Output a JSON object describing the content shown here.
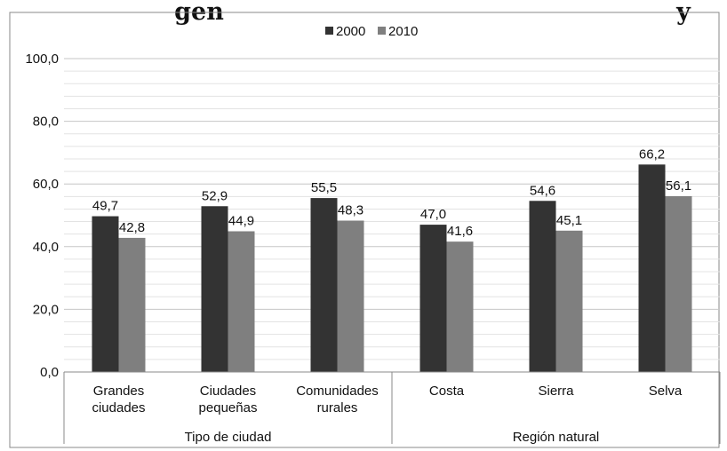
{
  "header": {
    "title_fragment": "gen",
    "title_fragment_right": "y"
  },
  "chart_data": {
    "type": "bar",
    "categories": [
      [
        "Grandes",
        "ciudades"
      ],
      [
        "Ciudades",
        "pequeñas"
      ],
      [
        "Comunidades",
        "rurales"
      ],
      [
        "Costa"
      ],
      [
        "Sierra"
      ],
      [
        "Selva"
      ]
    ],
    "groups": [
      {
        "label": "Tipo de ciudad",
        "count": 3
      },
      {
        "label": "Región natural",
        "count": 3
      }
    ],
    "series": [
      {
        "name": "2000",
        "color": "#333333",
        "values": [
          49.7,
          52.9,
          55.5,
          47.0,
          54.6,
          66.2
        ]
      },
      {
        "name": "2010",
        "color": "#7f7f7f",
        "values": [
          42.8,
          44.9,
          48.3,
          41.6,
          45.1,
          56.1
        ]
      }
    ],
    "value_labels": [
      [
        "49,7",
        "52,9",
        "55,5",
        "47,0",
        "54,6",
        "66,2"
      ],
      [
        "42,8",
        "44,9",
        "48,3",
        "41,6",
        "45,1",
        "56,1"
      ]
    ],
    "ylim": [
      0,
      100
    ],
    "yticks": [
      0,
      20,
      40,
      60,
      80,
      100
    ],
    "ytick_labels": [
      "0,0",
      "20,0",
      "40,0",
      "60,0",
      "80,0",
      "100,0"
    ],
    "minor_gridlines_per_major": 4,
    "legend_position": "top-center",
    "grid": true,
    "title": "",
    "xlabel": "",
    "ylabel": ""
  }
}
